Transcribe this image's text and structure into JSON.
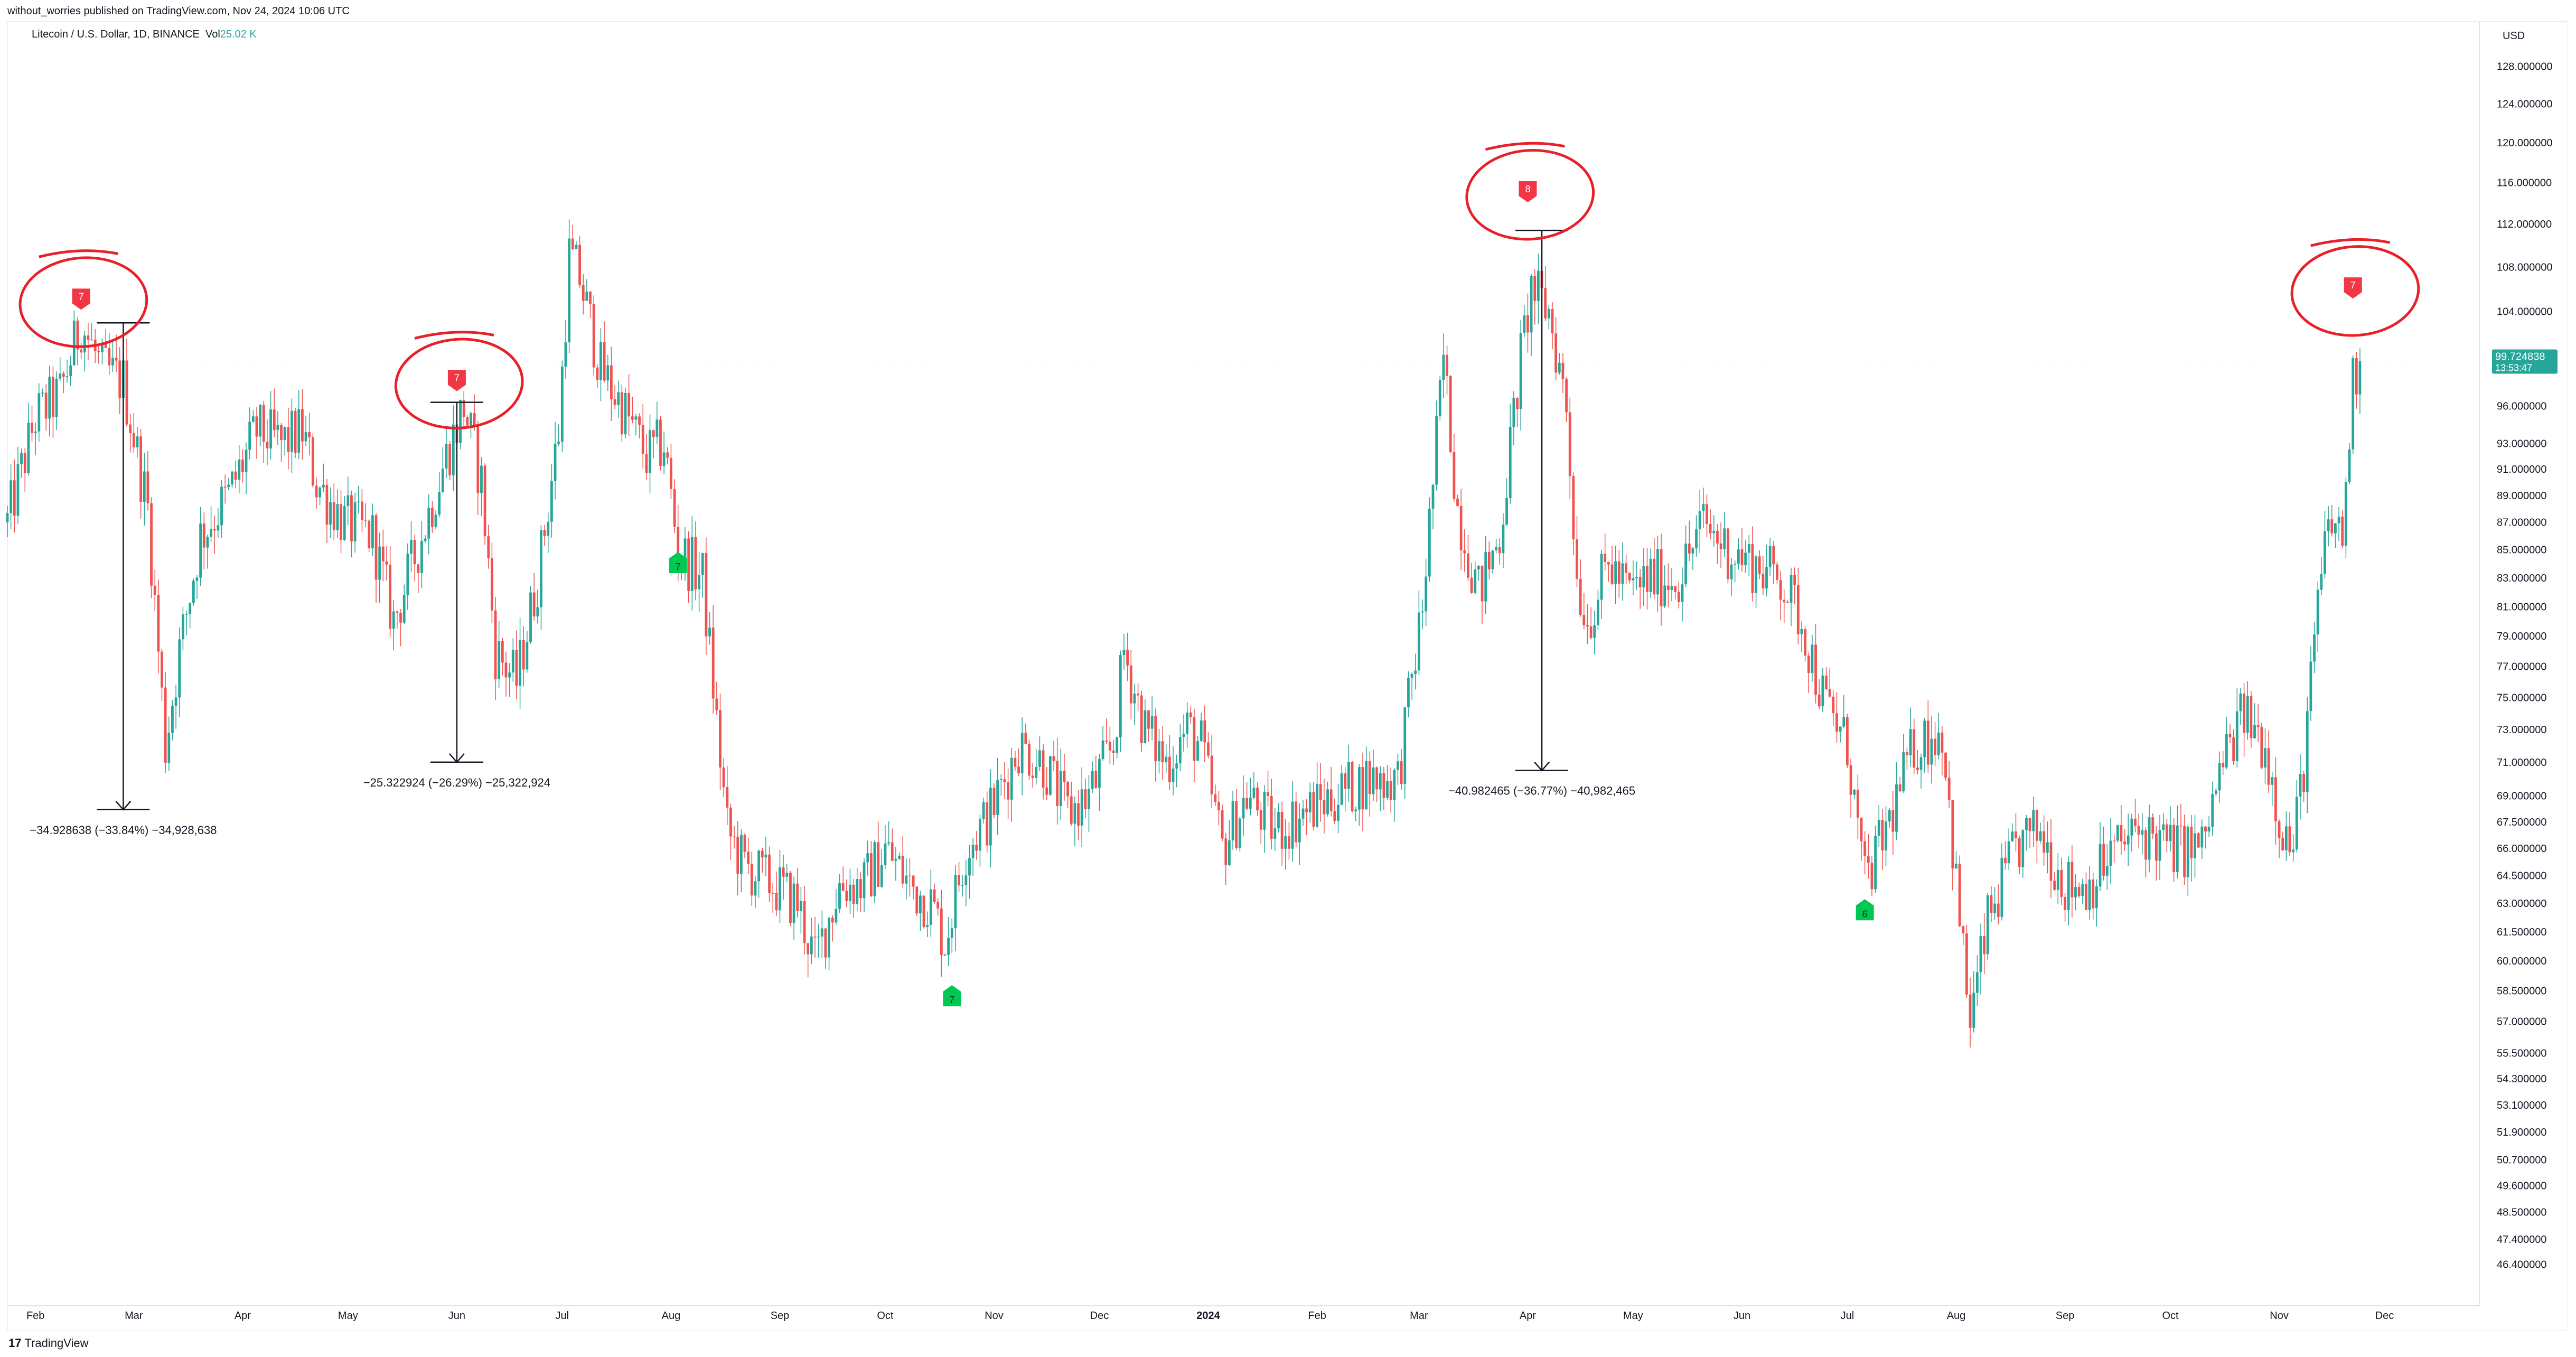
{
  "header": {
    "publish_line": "without_worries published on TradingView.com, Nov 24, 2024 10:06 UTC"
  },
  "symbol": {
    "name": "Litecoin / U.S. Dollar, 1D, BINANCE",
    "vol_label": "Vol",
    "vol_value": "25.02 K"
  },
  "footer": {
    "logo_text": "17",
    "brand": "TradingView"
  },
  "colors": {
    "up": "#26a69a",
    "down": "#ef5350",
    "marker_red": "#f23645",
    "marker_green": "#00c853",
    "circle": "#e8202a",
    "price_badge": "#26a69a"
  },
  "chart_data": {
    "type": "candlestick",
    "title": "Litecoin / U.S. Dollar, 1D, BINANCE",
    "y_axis_title": "USD",
    "scale": "log",
    "price_ticks": [
      "128.000000",
      "124.000000",
      "120.000000",
      "116.000000",
      "112.000000",
      "108.000000",
      "104.000000",
      "96.000000",
      "93.000000",
      "91.000000",
      "89.000000",
      "87.000000",
      "85.000000",
      "83.000000",
      "81.000000",
      "79.000000",
      "77.000000",
      "75.000000",
      "73.000000",
      "71.000000",
      "69.000000",
      "67.500000",
      "66.000000",
      "64.500000",
      "63.000000",
      "61.500000",
      "60.000000",
      "58.500000",
      "57.000000",
      "55.500000",
      "54.300000",
      "53.100000",
      "51.900000",
      "50.700000",
      "49.600000",
      "48.500000",
      "47.400000",
      "46.400000"
    ],
    "time_ticks": [
      "Feb",
      "Mar",
      "Apr",
      "May",
      "Jun",
      "Jul",
      "Aug",
      "Sep",
      "Oct",
      "Nov",
      "Dec",
      "2024",
      "Feb",
      "Mar",
      "Apr",
      "May",
      "Jun",
      "Jul",
      "Aug",
      "Sep",
      "Oct",
      "Nov",
      "Dec"
    ],
    "last_price": "99.724838",
    "countdown": "13:53:47",
    "price_path": [
      [
        "2023-01-24",
        87
      ],
      [
        "2023-02-01",
        95
      ],
      [
        "2023-02-08",
        97
      ],
      [
        "2023-02-14",
        103
      ],
      [
        "2023-02-20",
        99
      ],
      [
        "2023-02-26",
        98
      ],
      [
        "2023-03-05",
        88
      ],
      [
        "2023-03-10",
        72
      ],
      [
        "2023-03-14",
        78
      ],
      [
        "2023-03-20",
        86
      ],
      [
        "2023-03-28",
        89
      ],
      [
        "2023-04-05",
        94
      ],
      [
        "2023-04-12",
        93
      ],
      [
        "2023-04-18",
        94
      ],
      [
        "2023-04-22",
        90
      ],
      [
        "2023-04-30",
        87
      ],
      [
        "2023-05-08",
        86
      ],
      [
        "2023-05-14",
        80
      ],
      [
        "2023-05-22",
        86
      ],
      [
        "2023-05-29",
        92
      ],
      [
        "2023-06-03",
        96
      ],
      [
        "2023-06-08",
        90
      ],
      [
        "2023-06-12",
        78
      ],
      [
        "2023-06-18",
        76
      ],
      [
        "2023-06-24",
        83
      ],
      [
        "2023-06-30",
        94
      ],
      [
        "2023-07-03",
        109
      ],
      [
        "2023-07-06",
        107
      ],
      [
        "2023-07-12",
        99
      ],
      [
        "2023-07-18",
        96
      ],
      [
        "2023-07-25",
        92
      ],
      [
        "2023-07-30",
        93
      ],
      [
        "2023-08-03",
        85
      ],
      [
        "2023-08-10",
        83
      ],
      [
        "2023-08-17",
        67
      ],
      [
        "2023-08-22",
        65
      ],
      [
        "2023-08-30",
        64
      ],
      [
        "2023-09-06",
        63
      ],
      [
        "2023-09-11",
        60
      ],
      [
        "2023-09-18",
        64
      ],
      [
        "2023-09-25",
        64
      ],
      [
        "2023-10-01",
        66
      ],
      [
        "2023-10-08",
        64
      ],
      [
        "2023-10-14",
        63
      ],
      [
        "2023-10-18",
        61
      ],
      [
        "2023-10-24",
        66
      ],
      [
        "2023-10-31",
        68
      ],
      [
        "2023-11-08",
        72
      ],
      [
        "2023-11-15",
        71
      ],
      [
        "2023-11-22",
        68
      ],
      [
        "2023-11-28",
        69
      ],
      [
        "2023-12-05",
        72
      ],
      [
        "2023-12-08",
        78
      ],
      [
        "2023-12-14",
        73
      ],
      [
        "2023-12-20",
        71
      ],
      [
        "2023-12-26",
        73
      ],
      [
        "2023-12-30",
        72
      ],
      [
        "2024-01-05",
        66
      ],
      [
        "2024-01-12",
        69
      ],
      [
        "2024-01-20",
        67
      ],
      [
        "2024-01-28",
        68
      ],
      [
        "2024-02-06",
        69
      ],
      [
        "2024-02-15",
        70
      ],
      [
        "2024-02-24",
        70
      ],
      [
        "2024-03-02",
        81
      ],
      [
        "2024-03-05",
        90
      ],
      [
        "2024-03-08",
        100
      ],
      [
        "2024-03-12",
        88
      ],
      [
        "2024-03-18",
        82
      ],
      [
        "2024-03-24",
        86
      ],
      [
        "2024-03-30",
        100
      ],
      [
        "2024-04-02",
        106
      ],
      [
        "2024-04-07",
        104
      ],
      [
        "2024-04-12",
        96
      ],
      [
        "2024-04-15",
        83
      ],
      [
        "2024-04-18",
        80
      ],
      [
        "2024-04-24",
        84
      ],
      [
        "2024-04-30",
        82
      ],
      [
        "2024-05-06",
        83
      ],
      [
        "2024-05-14",
        83
      ],
      [
        "2024-05-21",
        87
      ],
      [
        "2024-05-28",
        85
      ],
      [
        "2024-06-04",
        84
      ],
      [
        "2024-06-12",
        83
      ],
      [
        "2024-06-18",
        80
      ],
      [
        "2024-06-24",
        75
      ],
      [
        "2024-07-01",
        72
      ],
      [
        "2024-07-06",
        64
      ],
      [
        "2024-07-12",
        67
      ],
      [
        "2024-07-20",
        72
      ],
      [
        "2024-07-28",
        73
      ],
      [
        "2024-08-02",
        62
      ],
      [
        "2024-08-05",
        57
      ],
      [
        "2024-08-10",
        62
      ],
      [
        "2024-08-18",
        66
      ],
      [
        "2024-08-25",
        67
      ],
      [
        "2024-09-01",
        64
      ],
      [
        "2024-09-08",
        64
      ],
      [
        "2024-09-15",
        66
      ],
      [
        "2024-09-23",
        67
      ],
      [
        "2024-10-01",
        66
      ],
      [
        "2024-10-10",
        66
      ],
      [
        "2024-10-16",
        71
      ],
      [
        "2024-10-22",
        74
      ],
      [
        "2024-10-28",
        72
      ],
      [
        "2024-11-02",
        67
      ],
      [
        "2024-11-05",
        66
      ],
      [
        "2024-11-08",
        71
      ],
      [
        "2024-11-12",
        81
      ],
      [
        "2024-11-15",
        87
      ],
      [
        "2024-11-19",
        86
      ],
      [
        "2024-11-22",
        98
      ],
      [
        "2024-11-24",
        99.72
      ]
    ],
    "td_signals": [
      {
        "date": "2023-02-14",
        "type": "sell",
        "label": "7",
        "price": 105,
        "circled": true
      },
      {
        "date": "2023-06-01",
        "type": "sell",
        "label": "7",
        "price": 98,
        "circled": true
      },
      {
        "date": "2024-04-01",
        "type": "sell",
        "label": "8",
        "price": 115,
        "circled": true
      },
      {
        "date": "2024-11-22",
        "type": "sell",
        "label": "7",
        "price": 106,
        "circled": true
      },
      {
        "date": "2023-08-03",
        "type": "buy",
        "label": "7",
        "price": 84
      },
      {
        "date": "2023-10-20",
        "type": "buy",
        "label": "7",
        "price": 58.2
      },
      {
        "date": "2024-07-06",
        "type": "buy",
        "label": "6",
        "price": 62.6
      }
    ],
    "drawdowns": [
      {
        "date": "2023-02-26",
        "from": 103.0,
        "to": 68.2,
        "label": "−34.928638 (−33.84%) −34,928,638"
      },
      {
        "date": "2023-06-01",
        "from": 96.3,
        "to": 71.0,
        "label": "−25.322924 (−26.29%) −25,322,924"
      },
      {
        "date": "2024-04-05",
        "from": 111.4,
        "to": 70.5,
        "label": "−40.982465 (−36.77%) −40,982,465"
      }
    ]
  }
}
